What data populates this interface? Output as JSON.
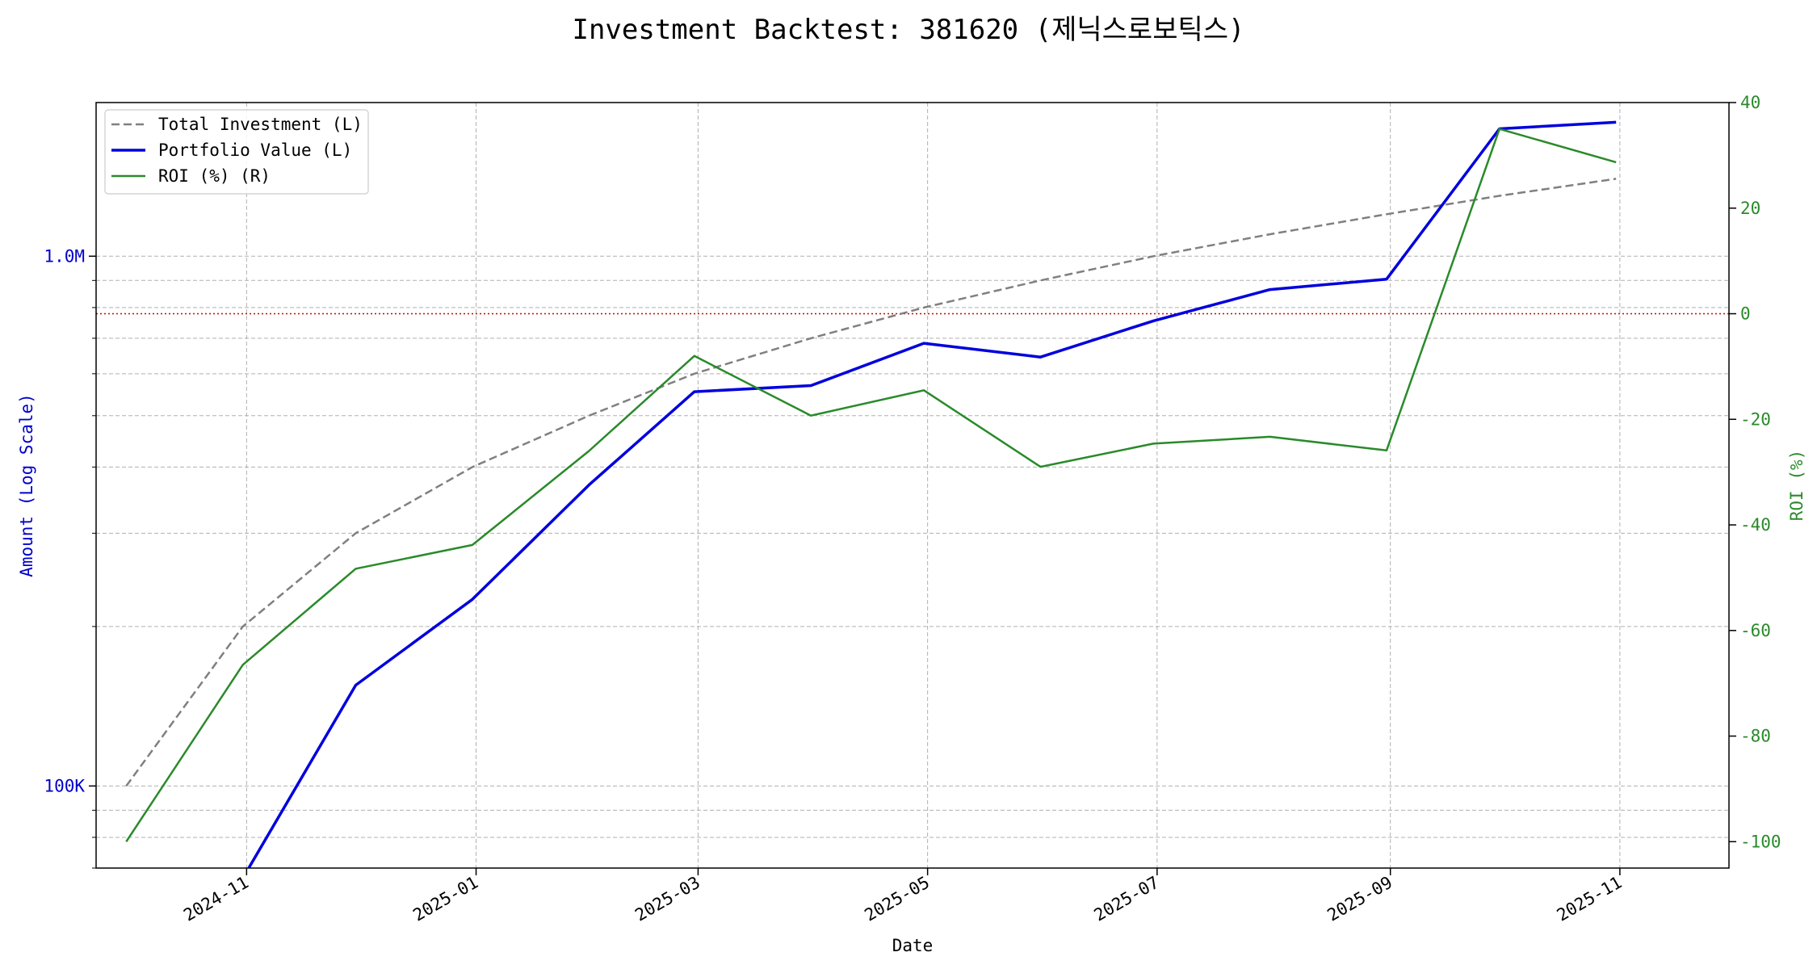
{
  "chart_data": {
    "type": "line",
    "title": "Investment Backtest: 381620 (제닉스로보틱스)",
    "xlabel": "Date",
    "ylabel_left": "Amount (Log Scale)",
    "ylabel_right": "ROI (%)",
    "left_scale": "log",
    "ylim_left": [
      70000,
      1950000
    ],
    "ylim_right": [
      -105,
      40
    ],
    "xlim": [
      "2024-09-22",
      "2025-11-30"
    ],
    "x_ticks": [
      "2024-11",
      "2025-01",
      "2025-03",
      "2025-05",
      "2025-07",
      "2025-09",
      "2025-11"
    ],
    "left_ticks": [
      {
        "value": 100000,
        "label": "100K"
      },
      {
        "value": 1000000,
        "label": "1.0M"
      }
    ],
    "right_ticks": [
      40,
      20,
      0,
      -20,
      -40,
      -60,
      -80,
      -100
    ],
    "reference_line": {
      "axis": "right",
      "value": 0,
      "color": "#cc0000"
    },
    "grid": true,
    "legend_position": "top-left",
    "x": [
      "2024-09-30",
      "2024-10-31",
      "2024-11-30",
      "2024-12-31",
      "2025-01-31",
      "2025-02-28",
      "2025-03-31",
      "2025-04-30",
      "2025-05-31",
      "2025-06-30",
      "2025-07-31",
      "2025-08-31",
      "2025-09-30",
      "2025-10-31"
    ],
    "series": [
      {
        "name": "Total Investment (L)",
        "axis": "left",
        "color": "#808080",
        "style": "dashed",
        "values": [
          100000,
          200000,
          300000,
          400000,
          500000,
          600000,
          700000,
          800000,
          900000,
          1000000,
          1100000,
          1200000,
          1300000,
          1400000
        ]
      },
      {
        "name": "Portfolio Value (L)",
        "axis": "left",
        "color": "#0000dd",
        "style": "solid",
        "values": [
          null,
          67000,
          155000,
          225000,
          370000,
          555000,
          570000,
          685000,
          645000,
          755000,
          865000,
          905000,
          1740000,
          1790000
        ]
      },
      {
        "name": "ROI (%) (R)",
        "axis": "right",
        "color": "#2a8a2a",
        "style": "solid",
        "values": [
          -100,
          -66.5,
          -48.3,
          -43.8,
          -26,
          -8,
          -19.3,
          -14.5,
          -29,
          -24.6,
          -23.3,
          -25.9,
          35,
          28.7
        ]
      }
    ]
  }
}
